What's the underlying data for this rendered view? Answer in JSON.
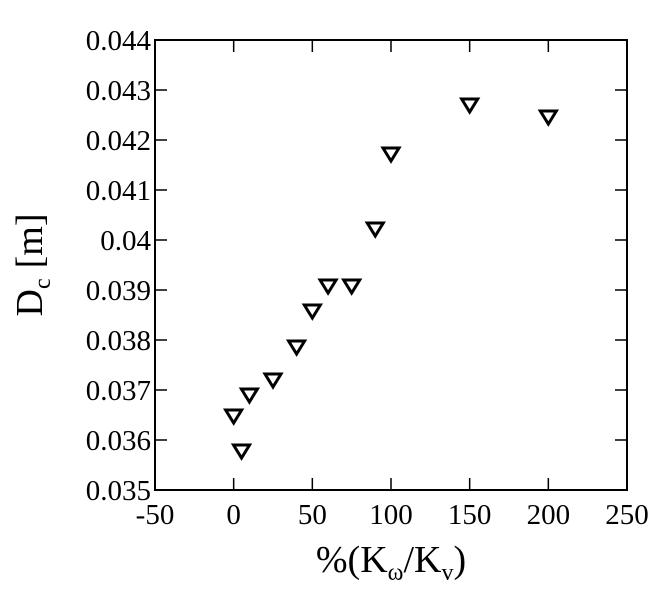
{
  "chart_data": {
    "type": "scatter",
    "ylabel": [
      "D",
      "c",
      "[m]"
    ],
    "xlabel": [
      "%(K",
      "ω",
      "/K",
      "v",
      ")"
    ],
    "x": [
      0,
      5,
      10,
      25,
      40,
      50,
      60,
      75,
      90,
      100,
      150,
      200
    ],
    "series": [
      {
        "color": "#000000",
        "values": [
          0.0365,
          0.0358,
          0.03692,
          0.03722,
          0.03788,
          0.0386,
          0.0391,
          0.0391,
          0.04024,
          0.04174,
          0.04272,
          0.04248
        ]
      }
    ],
    "xlim": [
      -50,
      250
    ],
    "xticks": [
      -50,
      0,
      50,
      100,
      150,
      200,
      250
    ],
    "ylim": [
      0.035,
      0.044
    ],
    "yticks": [
      0.035,
      0.036,
      0.037,
      0.038,
      0.039,
      0.04,
      0.041,
      0.042,
      0.043,
      0.044
    ],
    "grid": false
  }
}
